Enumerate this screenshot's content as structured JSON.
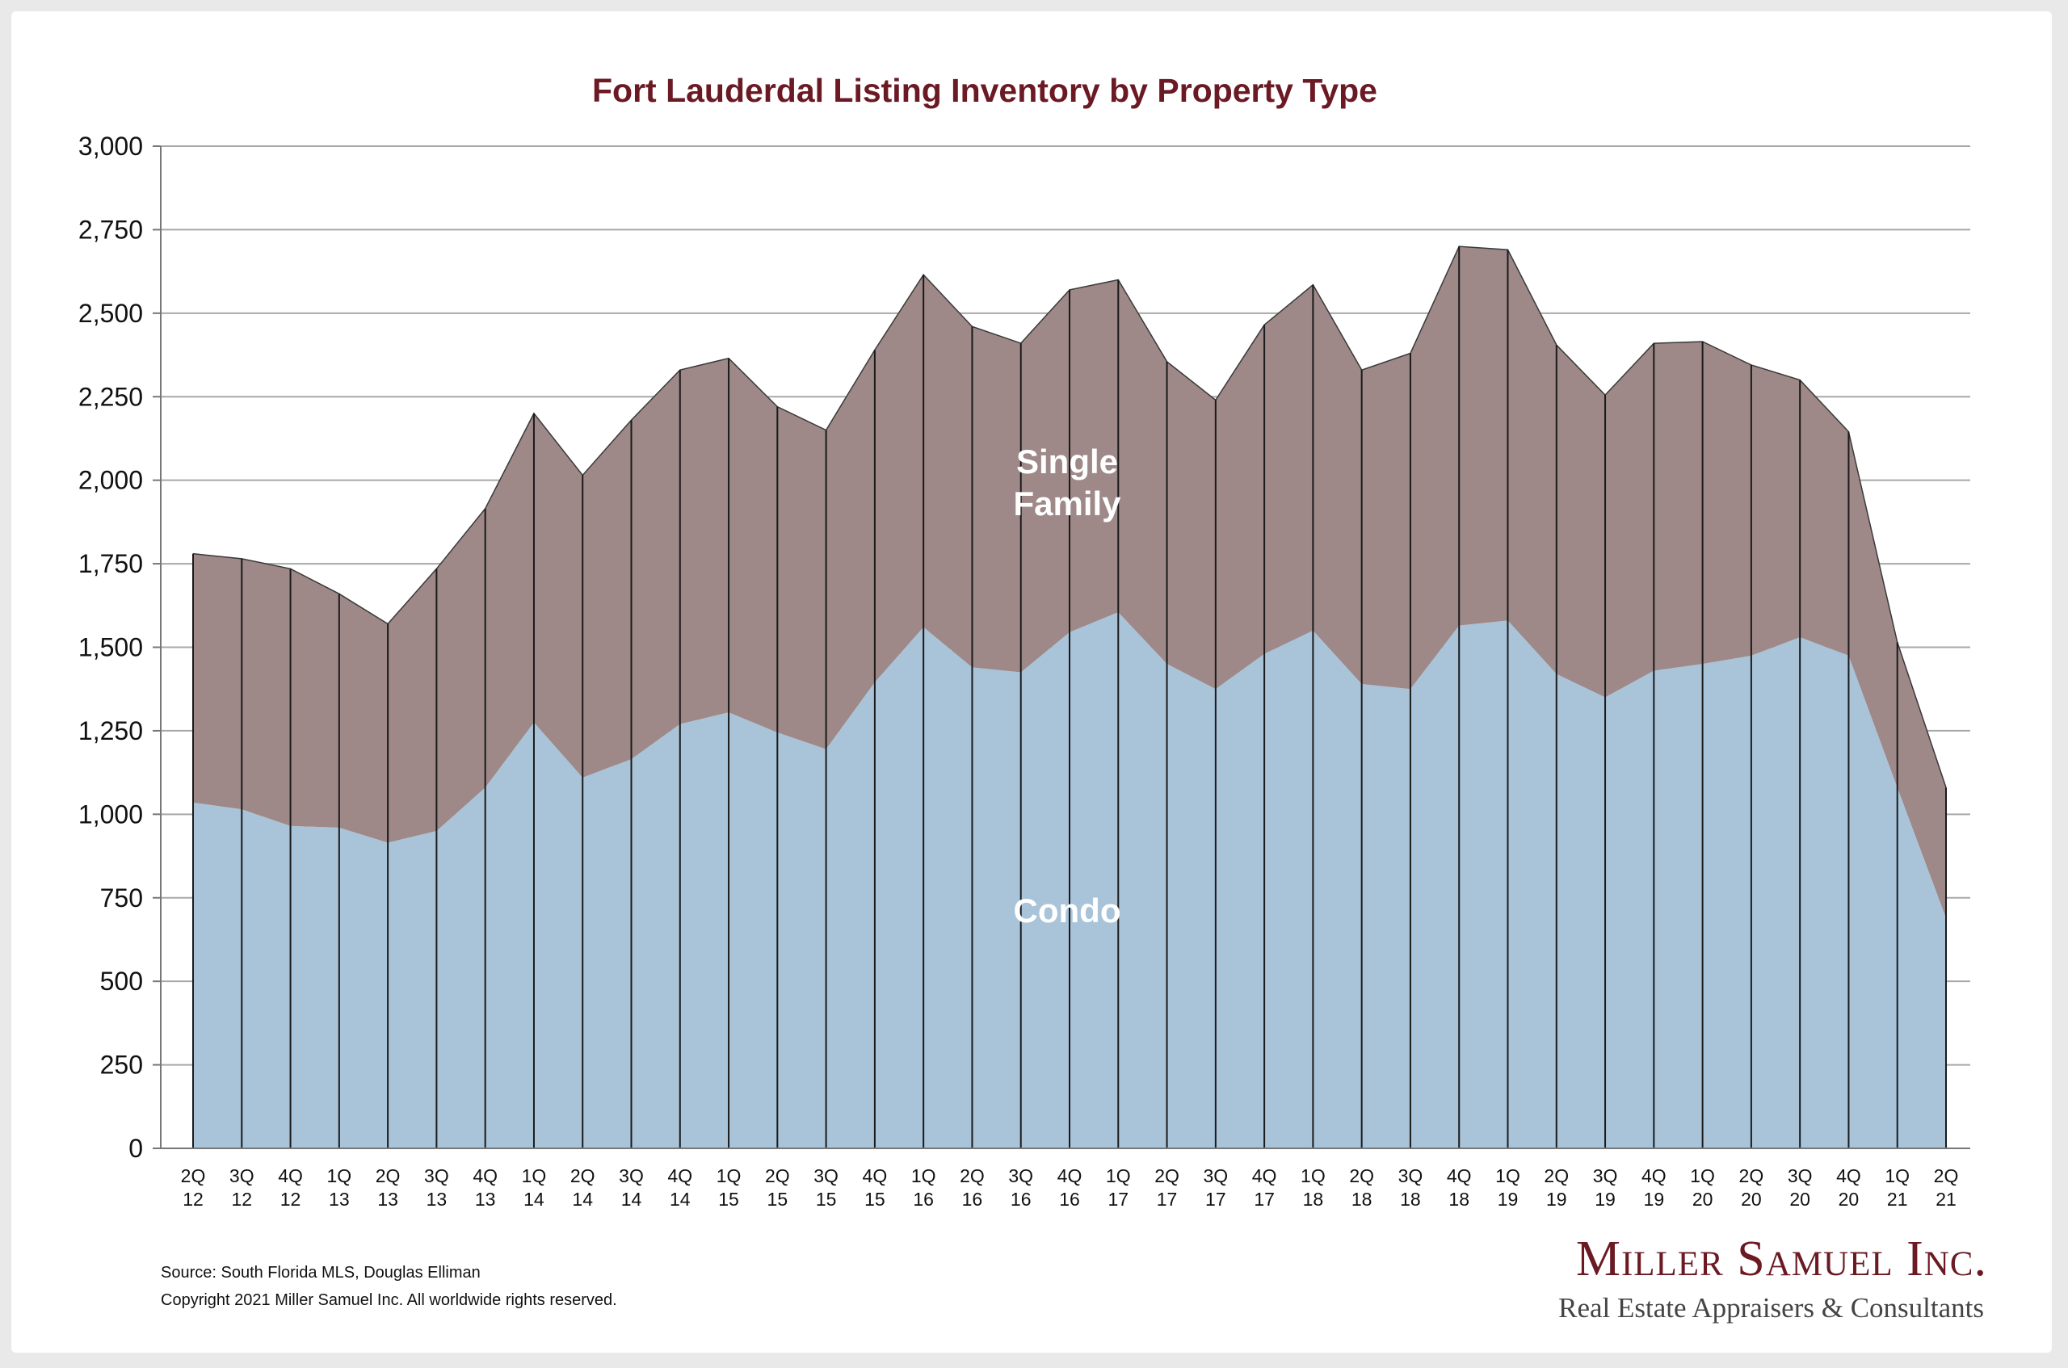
{
  "chart_data": {
    "type": "area",
    "stacked": true,
    "title": "Fort Lauderdal Listing Inventory by Property Type",
    "categories": [
      [
        "2Q",
        "12"
      ],
      [
        "3Q",
        "12"
      ],
      [
        "4Q",
        "12"
      ],
      [
        "1Q",
        "13"
      ],
      [
        "2Q",
        "13"
      ],
      [
        "3Q",
        "13"
      ],
      [
        "4Q",
        "13"
      ],
      [
        "1Q",
        "14"
      ],
      [
        "2Q",
        "14"
      ],
      [
        "3Q",
        "14"
      ],
      [
        "4Q",
        "14"
      ],
      [
        "1Q",
        "15"
      ],
      [
        "2Q",
        "15"
      ],
      [
        "3Q",
        "15"
      ],
      [
        "4Q",
        "15"
      ],
      [
        "1Q",
        "16"
      ],
      [
        "2Q",
        "16"
      ],
      [
        "3Q",
        "16"
      ],
      [
        "4Q",
        "16"
      ],
      [
        "1Q",
        "17"
      ],
      [
        "2Q",
        "17"
      ],
      [
        "3Q",
        "17"
      ],
      [
        "4Q",
        "17"
      ],
      [
        "1Q",
        "18"
      ],
      [
        "2Q",
        "18"
      ],
      [
        "3Q",
        "18"
      ],
      [
        "4Q",
        "18"
      ],
      [
        "1Q",
        "19"
      ],
      [
        "2Q",
        "19"
      ],
      [
        "3Q",
        "19"
      ],
      [
        "4Q",
        "19"
      ],
      [
        "1Q",
        "20"
      ],
      [
        "2Q",
        "20"
      ],
      [
        "3Q",
        "20"
      ],
      [
        "4Q",
        "20"
      ],
      [
        "1Q",
        "21"
      ],
      [
        "2Q",
        "21"
      ]
    ],
    "series": [
      {
        "name": "Condo",
        "color": "#a9c4d9",
        "values": [
          1035,
          1015,
          965,
          960,
          915,
          950,
          1080,
          1275,
          1110,
          1165,
          1270,
          1305,
          1245,
          1195,
          1395,
          1560,
          1440,
          1425,
          1545,
          1605,
          1450,
          1375,
          1480,
          1550,
          1390,
          1375,
          1565,
          1580,
          1420,
          1350,
          1430,
          1450,
          1475,
          1530,
          1475,
          1080,
          690
        ]
      },
      {
        "name": "Single Family",
        "color": "#9e8888",
        "values": [
          745,
          750,
          770,
          700,
          655,
          785,
          835,
          925,
          905,
          1015,
          1060,
          1060,
          975,
          955,
          995,
          1055,
          1020,
          985,
          1025,
          995,
          905,
          865,
          985,
          1035,
          940,
          1005,
          1135,
          1110,
          985,
          905,
          980,
          965,
          870,
          770,
          670,
          435,
          390
        ]
      }
    ],
    "ylim": [
      0,
      3000
    ],
    "yticks": [
      "0",
      "250",
      "500",
      "750",
      "1,000",
      "1,250",
      "1,500",
      "1,750",
      "2,000",
      "2,250",
      "2,500",
      "2,750",
      "3,000"
    ],
    "grid": true,
    "labels": {
      "upper": [
        "Single",
        "Family"
      ],
      "lower": "Condo"
    }
  },
  "footer": {
    "source": "Source: South Florida MLS, Douglas Elliman",
    "copyright": "Copyright 2021 Miller Samuel Inc.  All worldwide rights reserved."
  },
  "logo": {
    "name": "Miller Samuel Inc.",
    "tagline": "Real Estate Appraisers & Consultants"
  }
}
